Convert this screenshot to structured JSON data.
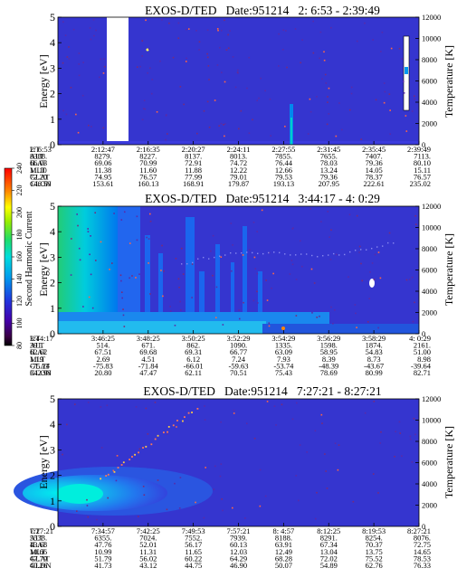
{
  "shared": {
    "ylabel_left": "Energy [eV]",
    "ylabel_right": "Temperature [K]",
    "energy_ticks": [
      "0",
      "1",
      "2",
      "3",
      "4",
      "5"
    ],
    "temp_ticks": [
      "0",
      "2000",
      "4000",
      "6000",
      "8000",
      "10000",
      "12000"
    ],
    "row_labels": [
      "UT",
      "ALT",
      "ILAT",
      "MLT",
      "GLAT",
      "GLON"
    ]
  },
  "colorbar": {
    "label": "Second Harmonic Current",
    "ticks": [
      "80",
      "100",
      "120",
      "140",
      "160",
      "180",
      "200",
      "220",
      "240"
    ]
  },
  "chart_data": [
    {
      "type": "heatmap",
      "title": "EXOS-D/TED   Date:951214   2: 6:53 - 2:39:49",
      "xlabel": "",
      "ylabel": "Energy [eV]",
      "y2label": "Temperature [K]",
      "ylim": [
        0,
        5
      ],
      "y2lim": [
        0,
        12000
      ],
      "background": "#3333cc",
      "columns": [
        {
          "UT": "2: 6:53",
          "ALT": "8388.",
          "ILAT": "66.03",
          "MLT": "11.10",
          "GLAT": "72.20",
          "GLON": "146.50"
        },
        {
          "UT": "2:12:47",
          "ALT": "8279.",
          "ILAT": "69.06",
          "MLT": "11.38",
          "GLAT": "74.95",
          "GLON": "153.61"
        },
        {
          "UT": "2:16:35",
          "ALT": "8227.",
          "ILAT": "70.99",
          "MLT": "11.60",
          "GLAT": "76.57",
          "GLON": "160.13"
        },
        {
          "UT": "2:20:27",
          "ALT": "8137.",
          "ILAT": "72.91",
          "MLT": "11.88",
          "GLAT": "77.99",
          "GLON": "168.91"
        },
        {
          "UT": "2:24:11",
          "ALT": "8013.",
          "ILAT": "74.72",
          "MLT": "12.22",
          "GLAT": "79.01",
          "GLON": "179.87"
        },
        {
          "UT": "2:27:55",
          "ALT": "7855.",
          "ILAT": "76.44",
          "MLT": "12.66",
          "GLAT": "79.53",
          "GLON": "193.13"
        },
        {
          "UT": "2:31:45",
          "ALT": "7655.",
          "ILAT": "78.03",
          "MLT": "13.24",
          "GLAT": "79.36",
          "GLON": "207.95"
        },
        {
          "UT": "2:35:45",
          "ALT": "7407.",
          "ILAT": "79.36",
          "MLT": "14.05",
          "GLAT": "78.37",
          "GLON": "222.61"
        },
        {
          "UT": "2:39:49",
          "ALT": "7113.",
          "ILAT": "80.10",
          "MLT": "15.11",
          "GLAT": "76.57",
          "GLON": "235.02"
        }
      ]
    },
    {
      "type": "heatmap",
      "title": "EXOS-D/TED   Date:951214   3:44:17 - 4: 0:29",
      "xlabel": "",
      "ylabel": "Energy [eV]",
      "y2label": "Temperature [K]",
      "ylim": [
        0,
        5
      ],
      "y2lim": [
        0,
        12000
      ],
      "background": "#3333cc",
      "columns": [
        {
          "UT": "3:44:17",
          "ALT": "391.",
          "ILAT": "62.62",
          "MLT": "1.19",
          "GLAT": "-75.24",
          "GLON": "342.98"
        },
        {
          "UT": "3:46:25",
          "ALT": "514.",
          "ILAT": "67.51",
          "MLT": "2.69",
          "GLAT": "-75.83",
          "GLON": "20.80"
        },
        {
          "UT": "3:48:25",
          "ALT": "671.",
          "ILAT": "69.68",
          "MLT": "4.51",
          "GLAT": "-71.84",
          "GLON": "47.47"
        },
        {
          "UT": "3:50:25",
          "ALT": "862.",
          "ILAT": "69.31",
          "MLT": "6.12",
          "GLAT": "-66.01",
          "GLON": "62.11"
        },
        {
          "UT": "3:52:29",
          "ALT": "1090.",
          "ILAT": "66.77",
          "MLT": "7.24",
          "GLAT": "-59.63",
          "GLON": "70.51"
        },
        {
          "UT": "3:54:29",
          "ALT": "1335.",
          "ILAT": "63.09",
          "MLT": "7.93",
          "GLAT": "-53.74",
          "GLON": "75.43"
        },
        {
          "UT": "3:56:29",
          "ALT": "1598.",
          "ILAT": "58.95",
          "MLT": "8.39",
          "GLAT": "-48.39",
          "GLON": "78.69"
        },
        {
          "UT": "3:58:29",
          "ALT": "1874.",
          "ILAT": "54.83",
          "MLT": "8.73",
          "GLAT": "-43.67",
          "GLON": "80.99"
        },
        {
          "UT": "4: 0:29",
          "ALT": "2161.",
          "ILAT": "51.00",
          "MLT": "8.98",
          "GLAT": "-39.64",
          "GLON": "82.71"
        }
      ]
    },
    {
      "type": "heatmap",
      "title": "EXOS-D/TED   Date:951214   7:27:21 - 8:27:21",
      "xlabel": "",
      "ylabel": "Energy [eV]",
      "y2label": "Temperature [K]",
      "ylim": [
        0,
        5
      ],
      "y2lim": [
        0,
        12000
      ],
      "background": "#3333cc",
      "columns": [
        {
          "UT": "7:27:21",
          "ALT": "5533.",
          "ILAT": "43.68",
          "MLT": "10.66",
          "GLAT": "47.79",
          "GLON": "40.26"
        },
        {
          "UT": "7:34:57",
          "ALT": "6355.",
          "ILAT": "47.76",
          "MLT": "10.99",
          "GLAT": "51.79",
          "GLON": "41.73"
        },
        {
          "UT": "7:42:25",
          "ALT": "7024.",
          "ILAT": "52.01",
          "MLT": "11.31",
          "GLAT": "56.02",
          "GLON": "43.12"
        },
        {
          "UT": "7:49:53",
          "ALT": "7552.",
          "ILAT": "56.17",
          "MLT": "11.65",
          "GLAT": "60.22",
          "GLON": "44.75"
        },
        {
          "UT": "7:57:21",
          "ALT": "7939.",
          "ILAT": "60.13",
          "MLT": "12.03",
          "GLAT": "64.29",
          "GLON": "46.90"
        },
        {
          "UT": "8: 4:57",
          "ALT": "8188.",
          "ILAT": "63.91",
          "MLT": "12.49",
          "GLAT": "68.28",
          "GLON": "50.07"
        },
        {
          "UT": "8:12:25",
          "ALT": "8291.",
          "ILAT": "67.34",
          "MLT": "13.04",
          "GLAT": "72.02",
          "GLON": "54.89"
        },
        {
          "UT": "8:19:53",
          "ALT": "8254.",
          "ILAT": "70.37",
          "MLT": "13.75",
          "GLAT": "75.52",
          "GLON": "62.76"
        },
        {
          "UT": "8:27:21",
          "ALT": "8076.",
          "ILAT": "72.75",
          "MLT": "14.65",
          "GLAT": "78.53",
          "GLON": "76.33"
        }
      ]
    }
  ]
}
